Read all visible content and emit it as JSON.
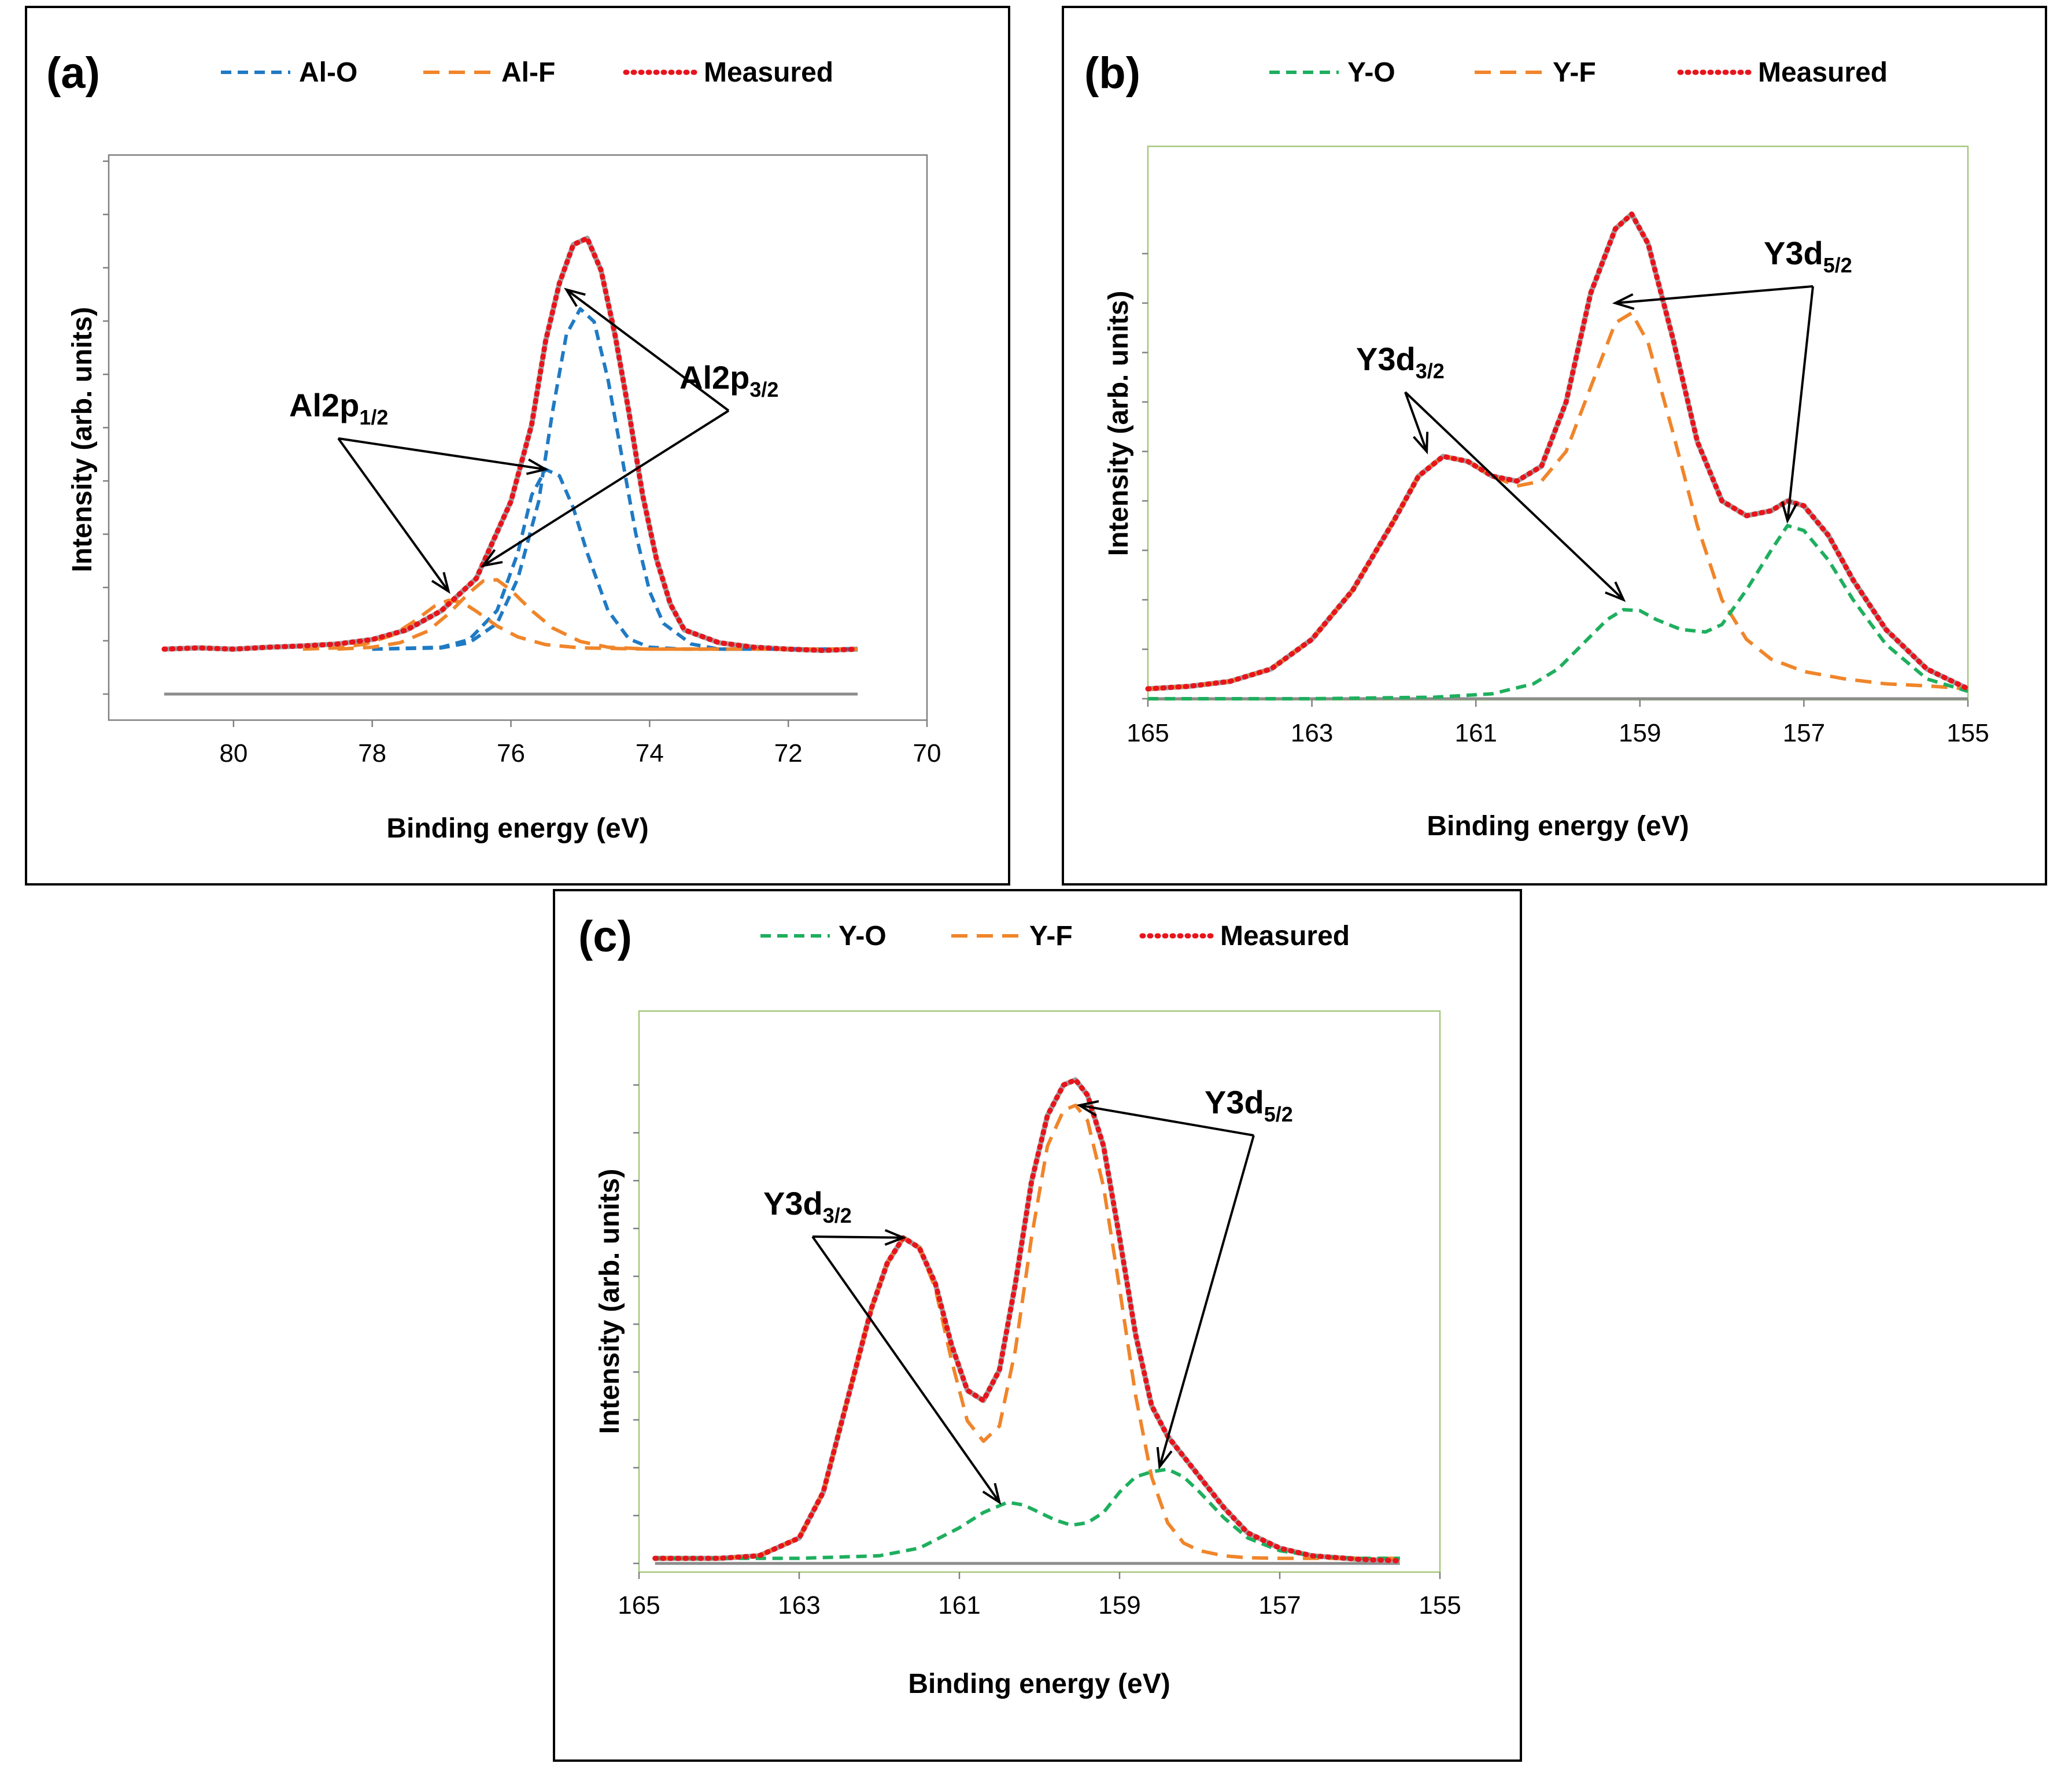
{
  "colors": {
    "envelope": "#a0a0a0",
    "measured": "#e8141c",
    "al_o": "#1f7ac4",
    "fluoride": "#f0852a",
    "y_o": "#1eaf5e",
    "plot_border_a": "#808080",
    "plot_border_bc": "#a6c77d",
    "baseline": "#8c8c8c"
  },
  "chart_data": [
    {
      "type": "line",
      "panel_label": "(a)",
      "xlabel": "Binding energy (eV)",
      "ylabel": "Intensity (arb. units)",
      "xlim": [
        81.8,
        70
      ],
      "ylim": [
        0,
        100
      ],
      "x_ticks": [
        80,
        78,
        76,
        74,
        72,
        70
      ],
      "x_tick_labels": [
        "80",
        "78",
        "76",
        "74",
        72,
        70
      ],
      "legend": [
        "Al-O",
        "Al-F",
        "Measured"
      ],
      "annotations": [
        {
          "main": "Al2p",
          "sub": "1/2",
          "targets": [
            {
              "x": 76.9,
              "y": 16
            },
            {
              "x": 75.5,
              "y": 35
            }
          ]
        },
        {
          "main": "Al2p",
          "sub": "3/2",
          "targets": [
            {
              "x": 75.2,
              "y": 63
            },
            {
              "x": 76.4,
              "y": 20
            }
          ]
        }
      ],
      "series": [
        {
          "name": "Measured",
          "x": [
            81,
            80.5,
            80,
            79.5,
            79,
            78.5,
            78,
            77.5,
            77,
            76.5,
            76,
            75.7,
            75.5,
            75.3,
            75.1,
            74.9,
            74.7,
            74.5,
            74.3,
            74.1,
            73.9,
            73.7,
            73.5,
            73,
            72.5,
            72,
            71.5,
            71
          ],
          "y": [
            7,
            7.2,
            7,
            7.3,
            7.5,
            7.8,
            8.5,
            10,
            13,
            18,
            30,
            42,
            55,
            64,
            70,
            71,
            66,
            56,
            44,
            31,
            21,
            14,
            10,
            8,
            7.3,
            7,
            6.8,
            7
          ]
        },
        {
          "name": "Al-O",
          "components": [
            {
              "peak": "Al2p3/2",
              "x": [
                78,
                77,
                76.6,
                76.2,
                75.9,
                75.6,
                75.4,
                75.2,
                75,
                74.8,
                74.6,
                74.4,
                74.2,
                74,
                73.8,
                73.4,
                73,
                72,
                71
              ],
              "y": [
                7,
                7.2,
                8,
                11,
                18,
                30,
                44,
                56,
                60,
                58,
                49,
                37,
                25,
                16,
                11,
                7.8,
                7,
                7,
                7
              ]
            },
            {
              "peak": "Al2p1/2",
              "x": [
                78,
                77,
                76.6,
                76.2,
                75.9,
                75.7,
                75.5,
                75.3,
                75.1,
                74.9,
                74.6,
                74.3,
                74,
                73.5,
                73,
                72,
                71
              ],
              "y": [
                7,
                7.3,
                8.5,
                13,
                22,
                31,
                35,
                34,
                29,
                22,
                13,
                8.6,
                7.3,
                7,
                7,
                7,
                7
              ]
            }
          ]
        },
        {
          "name": "Al-F",
          "components": [
            {
              "peak": "Al2p3/2",
              "x": [
                78.5,
                78,
                77.6,
                77.2,
                76.9,
                76.6,
                76.4,
                76.2,
                76,
                75.7,
                75.4,
                75,
                74.6,
                74,
                73,
                72,
                71
              ],
              "y": [
                7,
                7.3,
                8,
                9.8,
                12.5,
                15.8,
                17.6,
                17.8,
                16.2,
                13,
                10.3,
                8.2,
                7.3,
                7,
                7,
                7,
                7
              ]
            },
            {
              "peak": "Al2p1/2",
              "x": [
                79,
                78.5,
                78.1,
                77.7,
                77.4,
                77.1,
                76.9,
                76.7,
                76.5,
                76.2,
                75.9,
                75.5,
                75,
                74,
                73
              ],
              "y": [
                7,
                7.2,
                7.8,
                9.2,
                11.3,
                13.7,
                14.6,
                14.3,
                12.9,
                10.6,
                8.9,
                7.7,
                7.2,
                7,
                7
              ]
            }
          ]
        }
      ]
    },
    {
      "type": "line",
      "panel_label": "(b)",
      "xlabel": "Binding energy (eV)",
      "ylabel": "Intensity (arb. units)",
      "xlim": [
        165,
        155
      ],
      "ylim": [
        0,
        100
      ],
      "x_ticks": [
        165,
        163,
        161,
        159,
        157,
        155
      ],
      "x_tick_labels": [
        165,
        163,
        161,
        159,
        157,
        155
      ],
      "legend": [
        "Y-O",
        "Y-F",
        "Measured"
      ],
      "annotations": [
        {
          "main": "Y3d",
          "sub": "3/2",
          "targets": [
            {
              "x": 161.6,
              "y": 50
            },
            {
              "x": 159.2,
              "y": 20
            }
          ]
        },
        {
          "main": "Y3d",
          "sub": "5/2",
          "targets": [
            {
              "x": 159.3,
              "y": 80
            },
            {
              "x": 157.2,
              "y": 36
            }
          ]
        }
      ],
      "series": [
        {
          "name": "Measured",
          "x": [
            165,
            164.5,
            164,
            163.5,
            163,
            162.5,
            162,
            161.7,
            161.4,
            161.1,
            160.8,
            160.5,
            160.2,
            159.9,
            159.6,
            159.3,
            159.1,
            158.9,
            158.6,
            158.3,
            158,
            157.7,
            157.4,
            157.2,
            157,
            156.7,
            156.4,
            156,
            155.5,
            155
          ],
          "y": [
            2,
            2.5,
            3.5,
            6,
            12,
            22,
            36,
            45,
            49,
            48,
            45,
            44,
            47,
            60,
            82,
            95,
            98,
            92,
            73,
            52,
            40,
            37,
            38,
            40,
            39,
            33,
            24,
            14,
            6,
            2
          ]
        },
        {
          "name": "Y-F",
          "x": [
            165,
            164.5,
            164,
            163.5,
            163,
            162.5,
            162,
            161.7,
            161.4,
            161.1,
            160.8,
            160.5,
            160.2,
            159.9,
            159.6,
            159.3,
            159.1,
            158.9,
            158.6,
            158.3,
            158,
            157.7,
            157.4,
            157,
            156.5,
            156,
            155.5,
            155
          ],
          "y": [
            2,
            2.5,
            3.5,
            6,
            12,
            22,
            36,
            45,
            49,
            48,
            45,
            43,
            44,
            50,
            63,
            76,
            78,
            72,
            54,
            35,
            20,
            12,
            8,
            5.5,
            4,
            3,
            2.6,
            2
          ]
        },
        {
          "name": "Y-O",
          "x": [
            165,
            163,
            161.5,
            160.8,
            160.3,
            160,
            159.7,
            159.4,
            159.2,
            159,
            158.8,
            158.5,
            158.2,
            158,
            157.7,
            157.4,
            157.2,
            157,
            156.7,
            156.4,
            156,
            155.5,
            155
          ],
          "y": [
            0,
            0,
            0.3,
            1,
            3,
            6,
            11,
            16,
            18,
            17.8,
            16,
            14,
            13.5,
            15,
            22,
            30,
            35,
            34,
            28,
            20,
            11,
            4,
            1.5
          ]
        }
      ]
    },
    {
      "type": "line",
      "panel_label": "(c)",
      "xlabel": "Binding energy (eV)",
      "ylabel": "Intensity (arb. units)",
      "xlim": [
        165,
        155
      ],
      "ylim": [
        0,
        100
      ],
      "x_ticks": [
        165,
        163,
        161,
        159,
        157,
        155
      ],
      "x_tick_labels": [
        165,
        163,
        161,
        159,
        157,
        155
      ],
      "legend": [
        "Y-O",
        "Y-F",
        "Measured"
      ],
      "annotations": [
        {
          "main": "Y3d",
          "sub": "3/2",
          "targets": [
            {
              "x": 161.7,
              "y": 64
            },
            {
              "x": 160.5,
              "y": 12
            }
          ]
        },
        {
          "main": "Y3d",
          "sub": "5/2",
          "targets": [
            {
              "x": 159.5,
              "y": 90
            },
            {
              "x": 158.5,
              "y": 19
            }
          ]
        }
      ],
      "series": [
        {
          "name": "Measured",
          "x": [
            164.8,
            164,
            163.5,
            163,
            162.7,
            162.4,
            162.1,
            161.9,
            161.7,
            161.5,
            161.3,
            161.1,
            160.9,
            160.7,
            160.5,
            160.3,
            160.1,
            159.9,
            159.7,
            159.55,
            159.4,
            159.2,
            159,
            158.8,
            158.6,
            158.4,
            158.2,
            158,
            157.7,
            157.4,
            157,
            156.6,
            156,
            155.5
          ],
          "y": [
            1,
            1,
            1.5,
            5,
            14,
            32,
            50,
            59,
            64,
            62,
            55,
            43,
            34,
            32,
            38,
            55,
            75,
            88,
            94,
            95,
            92,
            82,
            64,
            45,
            31,
            25,
            21,
            17,
            11,
            6,
            3,
            1.5,
            0.8,
            0.5
          ]
        },
        {
          "name": "Y-F",
          "x": [
            164.8,
            164,
            163.5,
            163,
            162.7,
            162.4,
            162.1,
            161.9,
            161.7,
            161.5,
            161.3,
            161.1,
            160.9,
            160.7,
            160.5,
            160.3,
            160.1,
            159.9,
            159.7,
            159.55,
            159.4,
            159.2,
            159,
            158.8,
            158.6,
            158.4,
            158.2,
            158,
            157.7,
            157.4,
            157,
            156.6,
            156,
            155.5
          ],
          "y": [
            1,
            1,
            1.5,
            5,
            14,
            32,
            50,
            59,
            64,
            62,
            54,
            40,
            28,
            24,
            27,
            42,
            64,
            82,
            89,
            90,
            87,
            74,
            54,
            33,
            17,
            8,
            4,
            2.5,
            1.5,
            1.1,
            1,
            1,
            1,
            1
          ]
        },
        {
          "name": "Y-O",
          "x": [
            164.8,
            163,
            162,
            161.5,
            161,
            160.7,
            160.4,
            160.2,
            160,
            159.8,
            159.6,
            159.4,
            159.2,
            159,
            158.8,
            158.6,
            158.4,
            158.2,
            158,
            157.7,
            157.4,
            157,
            156.5,
            156,
            155.5
          ],
          "y": [
            1,
            1,
            1.5,
            3,
            7,
            10,
            12,
            11.5,
            10,
            8.5,
            7.5,
            8,
            10,
            14,
            17,
            18,
            18.5,
            17,
            14,
            9,
            5,
            2.5,
            1.3,
            1,
            1
          ]
        }
      ]
    }
  ]
}
